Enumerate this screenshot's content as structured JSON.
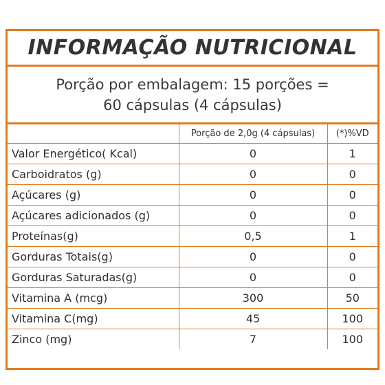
{
  "title": "INFORMAÇÃO NUTRICIONAL",
  "serving": {
    "line1": "Porção por embalagem: 15 porções =",
    "line2": "60 cápsulas (4 cápsulas)"
  },
  "table": {
    "headers": [
      "",
      "Porção de 2,0g (4 cápsulas)",
      "(*)%VD"
    ],
    "rows": [
      {
        "nutrient": "Valor Energético( Kcal)",
        "portion": "0",
        "vd": "1"
      },
      {
        "nutrient": "Carboidratos (g)",
        "portion": "0",
        "vd": "0"
      },
      {
        "nutrient": "Açúcares (g)",
        "portion": "0",
        "vd": "0"
      },
      {
        "nutrient": "Açúcares adicionados (g)",
        "portion": "0",
        "vd": "0"
      },
      {
        "nutrient": "Proteínas(g)",
        "portion": "0,5",
        "vd": "1"
      },
      {
        "nutrient": "Gorduras Totais(g)",
        "portion": "0",
        "vd": "0"
      },
      {
        "nutrient": "Gorduras Saturadas(g)",
        "portion": "0",
        "vd": "0"
      },
      {
        "nutrient": "Vitamina A (mcg)",
        "portion": "300",
        "vd": "50"
      },
      {
        "nutrient": "Vitamina C(mg)",
        "portion": "45",
        "vd": "100"
      },
      {
        "nutrient": "Zinco (mg)",
        "portion": "7",
        "vd": "100"
      }
    ]
  },
  "colors": {
    "border": "#e07a1f",
    "text": "#2f2f2f"
  }
}
